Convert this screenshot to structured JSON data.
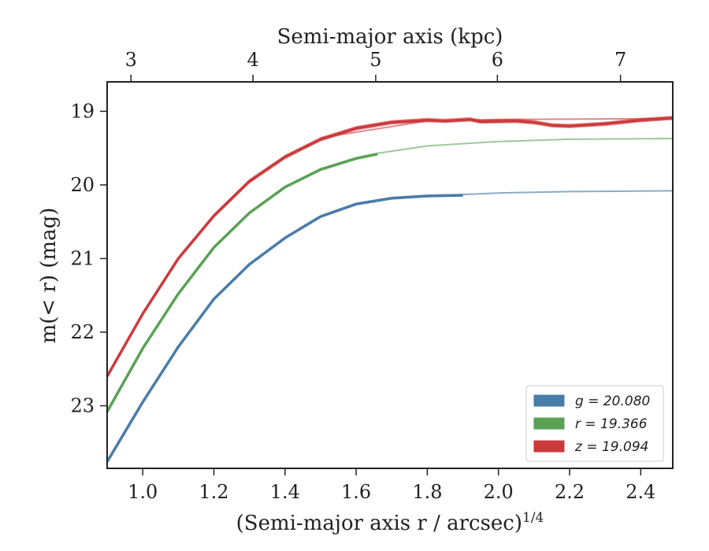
{
  "chart_data": {
    "type": "line",
    "xlabel": "(Semi-major axis r / arcsec)",
    "xlabel_sup": "1/4",
    "ylabel": "m(< r) (mag)",
    "x2label": "Semi-major axis (kpc)",
    "xlim": [
      0.9,
      2.49
    ],
    "ylim": [
      23.85,
      18.6
    ],
    "y_inverted": true,
    "x_ticks": [
      "1.0",
      "1.2",
      "1.4",
      "1.6",
      "1.8",
      "2.0",
      "2.2",
      "2.4"
    ],
    "y_ticks": [
      "19",
      "20",
      "21",
      "22",
      "23"
    ],
    "x2_ticks": [
      {
        "label": "3",
        "x": 0.967
      },
      {
        "label": "4",
        "x": 1.31
      },
      {
        "label": "5",
        "x": 1.655
      },
      {
        "label": "6",
        "x": 1.997
      },
      {
        "label": "7",
        "x": 2.343
      }
    ],
    "legend_position": "lower-right",
    "series": [
      {
        "name": "g = 20.080",
        "color": "#4a7ca8",
        "model_color": "#8aacc4",
        "band": 0.02,
        "data": [
          [
            0.9,
            23.76
          ],
          [
            1.0,
            22.95
          ],
          [
            1.1,
            22.2
          ],
          [
            1.2,
            21.55
          ],
          [
            1.3,
            21.08
          ],
          [
            1.4,
            20.72
          ],
          [
            1.5,
            20.43
          ],
          [
            1.6,
            20.26
          ],
          [
            1.7,
            20.18
          ],
          [
            1.8,
            20.15
          ],
          [
            1.9,
            20.14
          ]
        ],
        "model": [
          [
            1.9,
            20.13
          ],
          [
            2.0,
            20.11
          ],
          [
            2.2,
            20.09
          ],
          [
            2.49,
            20.08
          ]
        ]
      },
      {
        "name": "r = 19.366",
        "color": "#5aa155",
        "model_color": "#9fc89b",
        "band": 0.02,
        "data": [
          [
            0.9,
            23.08
          ],
          [
            1.0,
            22.22
          ],
          [
            1.1,
            21.48
          ],
          [
            1.2,
            20.85
          ],
          [
            1.3,
            20.38
          ],
          [
            1.4,
            20.03
          ],
          [
            1.5,
            19.79
          ],
          [
            1.6,
            19.64
          ],
          [
            1.66,
            19.58
          ]
        ],
        "model": [
          [
            1.66,
            19.57
          ],
          [
            1.8,
            19.47
          ],
          [
            2.0,
            19.41
          ],
          [
            2.2,
            19.38
          ],
          [
            2.49,
            19.37
          ]
        ]
      },
      {
        "name": "z = 19.094",
        "color": "#cc3a3c",
        "model_color": "#e0898b",
        "band": 0.03,
        "data": [
          [
            0.9,
            22.6
          ],
          [
            1.0,
            21.75
          ],
          [
            1.1,
            21.0
          ],
          [
            1.2,
            20.42
          ],
          [
            1.3,
            19.95
          ],
          [
            1.4,
            19.62
          ],
          [
            1.5,
            19.38
          ],
          [
            1.6,
            19.23
          ],
          [
            1.7,
            19.15
          ],
          [
            1.8,
            19.12
          ],
          [
            1.85,
            19.13
          ],
          [
            1.92,
            19.11
          ],
          [
            1.95,
            19.14
          ],
          [
            2.05,
            19.13
          ],
          [
            2.1,
            19.15
          ],
          [
            2.15,
            19.19
          ],
          [
            2.2,
            19.2
          ],
          [
            2.3,
            19.17
          ],
          [
            2.4,
            19.12
          ],
          [
            2.49,
            19.09
          ]
        ],
        "model": [
          [
            1.5,
            19.36
          ],
          [
            1.8,
            19.13
          ],
          [
            2.0,
            19.11
          ],
          [
            2.49,
            19.1
          ]
        ]
      }
    ]
  }
}
